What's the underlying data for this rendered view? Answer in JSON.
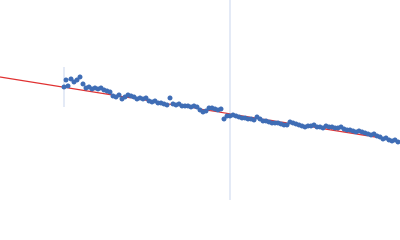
{
  "chart_data": {
    "type": "scatter",
    "xlim": [
      0,
      400
    ],
    "ylim": [
      200,
      0
    ],
    "vlines": [
      {
        "x": 230,
        "color": "#c8d4ec"
      }
    ],
    "error_bars": [
      {
        "x": 64,
        "y": 87,
        "err": 20,
        "color": "#c8d4ec"
      }
    ],
    "fit": {
      "x": [
        0,
        400
      ],
      "y": [
        77,
        141
      ],
      "color": "#e03030"
    },
    "series": [
      {
        "color": "#3f6db5",
        "x": [
          64,
          66,
          68,
          71,
          74,
          77,
          80,
          83,
          86,
          89,
          92,
          95,
          98,
          101,
          104,
          107,
          110,
          113,
          116,
          119,
          122,
          125,
          128,
          131,
          134,
          137,
          140,
          143,
          146,
          149,
          152,
          155,
          158,
          161,
          164,
          167,
          170,
          173,
          176,
          179,
          182,
          185,
          188,
          191,
          194,
          197,
          200,
          203,
          206,
          209,
          212,
          215,
          218,
          221,
          224,
          227,
          230,
          233,
          236,
          239,
          242,
          245,
          248,
          251,
          254,
          257,
          260,
          263,
          266,
          269,
          272,
          275,
          278,
          281,
          284,
          287,
          290,
          293,
          296,
          299,
          302,
          305,
          308,
          311,
          314,
          317,
          320,
          323,
          326,
          329,
          332,
          335,
          338,
          341,
          344,
          347,
          350,
          353,
          356,
          359,
          362,
          365,
          368,
          371,
          374,
          377,
          380,
          383,
          386,
          389,
          392,
          395,
          398
        ],
        "values": [
          87,
          80,
          86,
          79,
          82,
          80,
          77,
          84,
          88,
          87,
          89,
          88,
          89,
          88,
          90,
          91,
          92,
          96,
          97,
          95,
          99,
          97,
          95,
          96,
          97,
          99,
          98,
          99,
          98,
          101,
          102,
          101,
          103,
          103,
          104,
          105,
          98,
          104,
          105,
          104,
          106,
          106,
          106,
          107,
          106,
          107,
          110,
          112,
          111,
          108,
          108,
          109,
          110,
          109,
          119,
          116,
          116,
          115,
          116,
          117,
          118,
          118,
          119,
          119,
          120,
          117,
          119,
          121,
          121,
          122,
          123,
          123,
          123,
          124,
          125,
          125,
          122,
          123,
          124,
          125,
          126,
          127,
          126,
          126,
          125,
          127,
          127,
          128,
          126,
          127,
          127,
          128,
          128,
          127,
          129,
          130,
          130,
          131,
          132,
          131,
          132,
          133,
          134,
          135,
          134,
          136,
          137,
          139,
          138,
          140,
          141,
          140,
          142
        ]
      }
    ]
  }
}
